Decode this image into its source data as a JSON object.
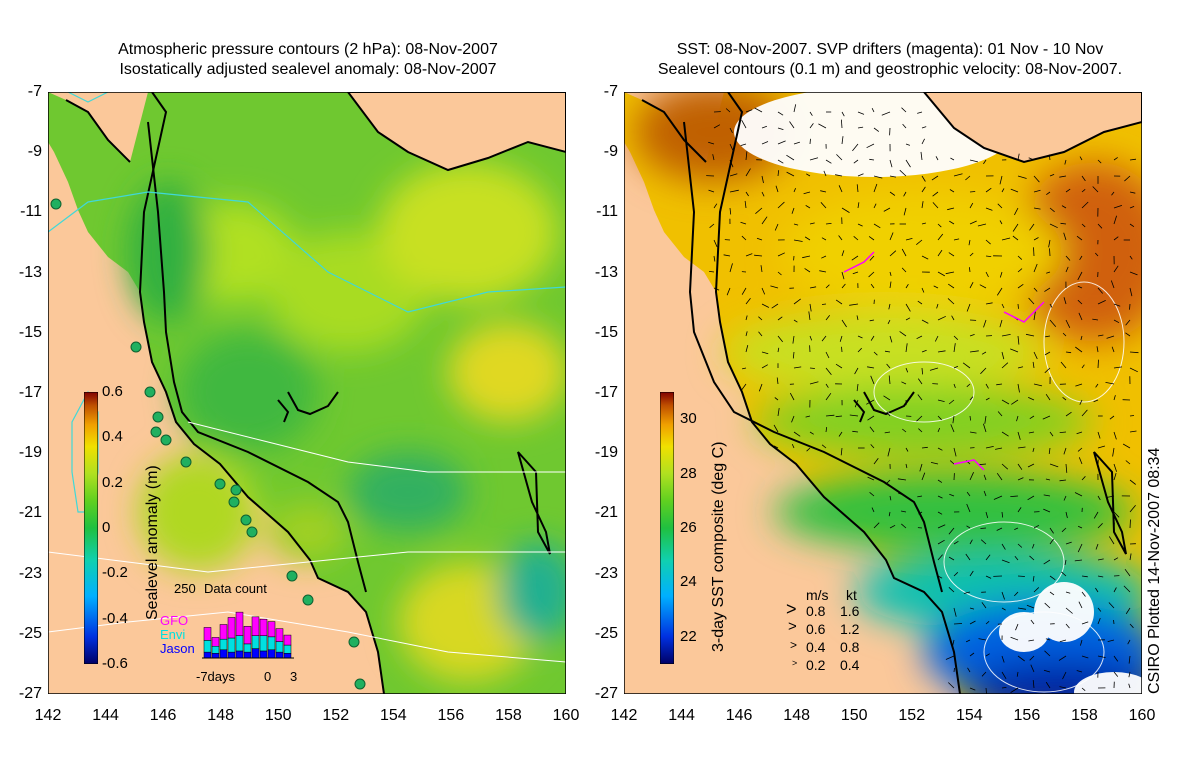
{
  "left_panel": {
    "title_line1": "Atmospheric pressure contours (2 hPa): 08-Nov-2007",
    "title_line2": "Isostatically adjusted sealevel anomaly: 08-Nov-2007",
    "y_ticks": [
      "-7",
      "-9",
      "-11",
      "-13",
      "-15",
      "-17",
      "-19",
      "-21",
      "-23",
      "-25",
      "-27"
    ],
    "x_ticks": [
      "142",
      "144",
      "146",
      "148",
      "150",
      "152",
      "154",
      "156",
      "158",
      "160"
    ],
    "colorbar": {
      "label": "Sealevel anomaly (m)",
      "ticks": [
        "0.6",
        "0.4",
        "0.2",
        "0",
        "-0.2",
        "-0.4",
        "-0.6"
      ],
      "range": [
        -0.6,
        0.6
      ]
    },
    "histogram": {
      "title": "Data count",
      "ymax_label": "250",
      "x_labels": [
        "-7days",
        "0",
        "3"
      ],
      "legend": [
        {
          "label": "GFO",
          "color": "#ff00ff"
        },
        {
          "label": "Envi",
          "color": "#00e0e0"
        },
        {
          "label": "Jason",
          "color": "#0000ff"
        }
      ],
      "bars": [
        {
          "jason": 0.1,
          "envi": 0.2,
          "gfo": 0.22
        },
        {
          "jason": 0.08,
          "envi": 0.12,
          "gfo": 0.15
        },
        {
          "jason": 0.14,
          "envi": 0.18,
          "gfo": 0.25
        },
        {
          "jason": 0.1,
          "envi": 0.24,
          "gfo": 0.35
        },
        {
          "jason": 0.12,
          "envi": 0.26,
          "gfo": 0.4
        },
        {
          "jason": 0.1,
          "envi": 0.14,
          "gfo": 0.3
        },
        {
          "jason": 0.16,
          "envi": 0.22,
          "gfo": 0.32
        },
        {
          "jason": 0.12,
          "envi": 0.26,
          "gfo": 0.28
        },
        {
          "jason": 0.14,
          "envi": 0.22,
          "gfo": 0.26
        },
        {
          "jason": 0.1,
          "envi": 0.18,
          "gfo": 0.22
        },
        {
          "jason": 0.08,
          "envi": 0.14,
          "gfo": 0.17
        }
      ]
    }
  },
  "right_panel": {
    "title_line1": "SST: 08-Nov-2007. SVP drifters (magenta): 01 Nov - 10 Nov",
    "title_line2": "Sealevel contours (0.1 m) and geostrophic velocity: 08-Nov-2007.",
    "y_ticks": [
      "-7",
      "-9",
      "-11",
      "-13",
      "-15",
      "-17",
      "-19",
      "-21",
      "-23",
      "-25",
      "-27"
    ],
    "x_ticks": [
      "142",
      "144",
      "146",
      "148",
      "150",
      "152",
      "154",
      "156",
      "158",
      "160"
    ],
    "colorbar": {
      "label": "3-day SST composite (deg C)",
      "ticks": [
        "30",
        "28",
        "26",
        "24",
        "22"
      ],
      "range": [
        21,
        31
      ]
    },
    "velocity_legend": {
      "header_ms": "m/s",
      "header_kt": "kt",
      "rows": [
        {
          "ms": "0.8",
          "kt": "1.6"
        },
        {
          "ms": "0.6",
          "kt": "1.2"
        },
        {
          "ms": "0.4",
          "kt": "0.8"
        },
        {
          "ms": "0.2",
          "kt": "0.4"
        }
      ]
    }
  },
  "credit": "CSIRO Plotted 14-Nov-2007 08:34",
  "colors": {
    "land": "#fbc89a",
    "coast": "#000000",
    "sla_ramp": [
      "#000066",
      "#0030e0",
      "#00b0ff",
      "#10d0b0",
      "#20c040",
      "#60d020",
      "#b0e020",
      "#f0e000",
      "#f0a000",
      "#c05000",
      "#800000"
    ],
    "sst_ramp": [
      "#000066",
      "#0030e0",
      "#00b0ff",
      "#10d0b0",
      "#20c040",
      "#60d020",
      "#b0e020",
      "#f0e000",
      "#f0a000",
      "#c05000",
      "#800000"
    ]
  }
}
